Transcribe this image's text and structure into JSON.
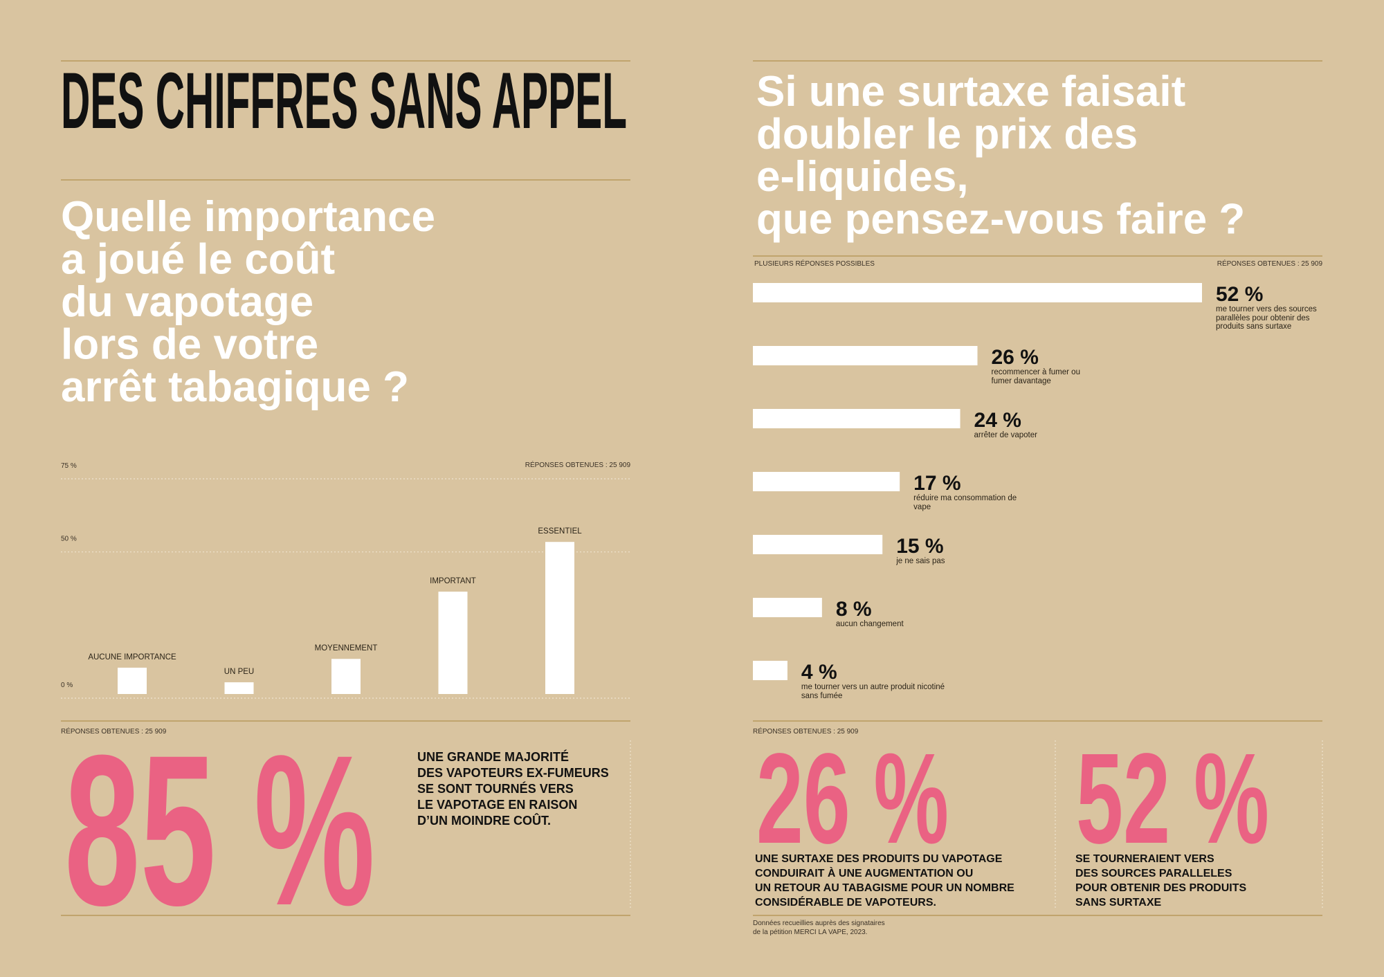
{
  "title": "DES CHIFFRES SANS APPEL",
  "chart_data": [
    {
      "type": "bar",
      "title": [
        "Quelle importance",
        "a joué le coût",
        "du vapotage",
        "lors de votre",
        "arrêt tabagique ?"
      ],
      "note": "RÉPONSES OBTENUES : 25 909",
      "categories": [
        "AUCUNE IMPORTANCE",
        "UN PEU",
        "MOYENNEMENT",
        "IMPORTANT",
        "ESSENTIEL"
      ],
      "values": [
        9,
        4,
        12,
        35,
        52
      ],
      "color": "#ffffff",
      "ylim": [
        0,
        75
      ],
      "yticks": [
        {
          "value": 0,
          "label": "0 %"
        },
        {
          "value": 50,
          "label": "50 %"
        },
        {
          "value": 75,
          "label": "75 %"
        }
      ],
      "grid": true
    },
    {
      "type": "hbar",
      "title": [
        "Si une surtaxe faisait",
        "doubler le prix des",
        "e-liquides,",
        "que pensez-vous faire ?"
      ],
      "subtitle": "PLUSIEURS RÉPONSES POSSIBLES",
      "note": "RÉPONSES OBTENUES : 25 909",
      "categories": [
        "me tourner vers des sources parallèles pour obtenir des produits sans surtaxe",
        "recommencer à fumer ou fumer davantage",
        "arrêter de vapoter",
        "réduire ma consommation de vape",
        "je ne sais pas",
        "aucun changement",
        "me tourner vers un autre produit nicotiné sans fumée"
      ],
      "values": [
        52,
        26,
        24,
        17,
        15,
        8,
        4
      ],
      "value_labels": [
        "52 %",
        "26 %",
        "24 %",
        "17 %",
        "15 %",
        "8 %",
        "4 %"
      ],
      "color": "#ffffff"
    }
  ],
  "stats": [
    {
      "note": "RÉPONSES OBTENUES : 25 909",
      "value": "85 %",
      "text": [
        "UNE GRANDE MAJORITÉ",
        "DES VAPOTEURS EX-FUMEURS",
        "SE SONT TOURNÉS VERS",
        "LE VAPOTAGE EN RAISON",
        "D’UN MOINDRE COÛT."
      ]
    },
    {
      "note": "RÉPONSES OBTENUES : 25 909",
      "value": "26 %",
      "text": [
        "UNE SURTAXE DES PRODUITS DU VAPOTAGE",
        "CONDUIRAIT À UNE AUGMENTATION OU",
        "UN RETOUR AU TABAGISME POUR UN NOMBRE",
        "CONSIDÉRABLE DE VAPOTEURS."
      ]
    },
    {
      "value": "52 %",
      "text": [
        "SE TOURNERAIENT VERS",
        "DES SOURCES PARALLELES",
        "POUR OBTENIR DES PRODUITS",
        "SANS SURTAXE"
      ]
    }
  ],
  "source": [
    "Données recueillies auprès des signataires",
    "de la pétition MERCI LA VAPE, 2023."
  ]
}
